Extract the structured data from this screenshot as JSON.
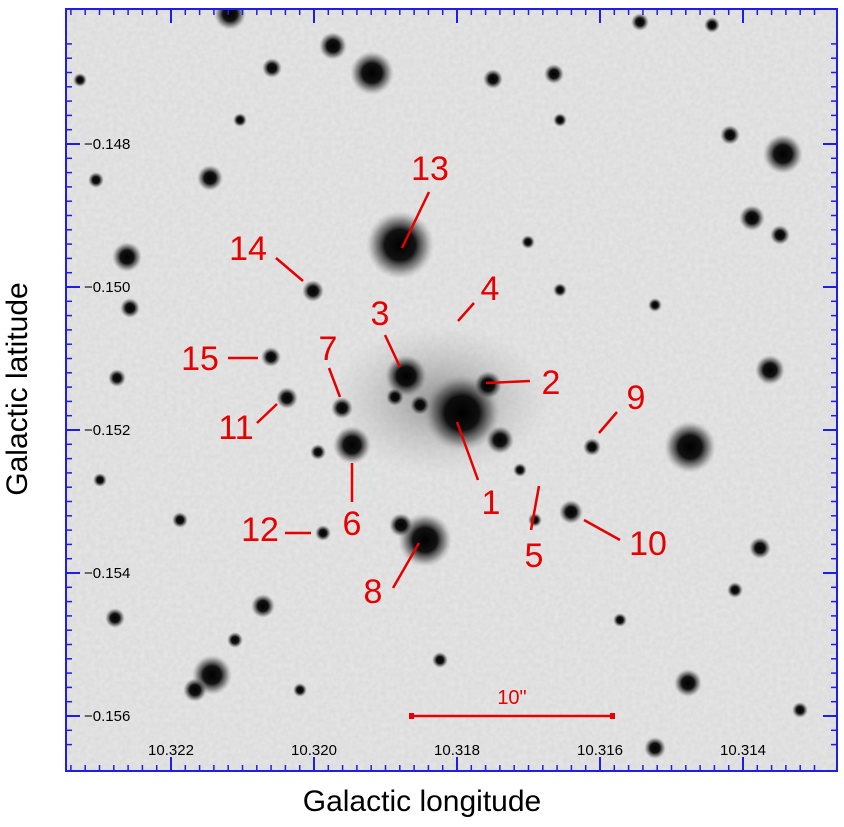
{
  "axes": {
    "xlabel": "Galactic  longitude",
    "ylabel": "Galactic  latitude",
    "xlim": [
      10.3238,
      10.3129
    ],
    "ylim": [
      -0.1566,
      -0.1467
    ],
    "x_ticks": [
      10.322,
      10.32,
      10.318,
      10.316,
      10.314
    ],
    "x_tick_labels": [
      "10.322",
      "10.320",
      "10.318",
      "10.316",
      "10.314"
    ],
    "y_ticks": [
      -0.148,
      -0.15,
      -0.152,
      -0.154,
      -0.156
    ],
    "y_tick_labels": [
      "−0.148",
      "−0.150",
      "−0.152",
      "−0.154",
      "−0.156"
    ],
    "frame_color": "#1e1ee6",
    "label_color": "#000000"
  },
  "scale_bar": {
    "label": "10\"",
    "length_arcsec": 10,
    "color": "#e60000"
  },
  "annotation_color": "#e60000",
  "sources": [
    {
      "id": "1",
      "label": "1",
      "l": 10.3179,
      "b": -0.1519
    },
    {
      "id": "2",
      "label": "2",
      "l": 10.3175,
      "b": -0.1514
    },
    {
      "id": "3",
      "label": "3",
      "l": 10.3186,
      "b": -0.1513
    },
    {
      "id": "4",
      "label": "4",
      "l": 10.318,
      "b": -0.1504
    },
    {
      "id": "5",
      "label": "5",
      "l": 10.3169,
      "b": -0.1527
    },
    {
      "id": "6",
      "label": "6",
      "l": 10.3195,
      "b": -0.1522
    },
    {
      "id": "7",
      "label": "7",
      "l": 10.3195,
      "b": -0.1517
    },
    {
      "id": "8",
      "label": "8",
      "l": 10.3184,
      "b": -0.1536
    },
    {
      "id": "9",
      "label": "9",
      "l": 10.3159,
      "b": -0.1522
    },
    {
      "id": "10",
      "label": "10",
      "l": 10.3163,
      "b": -0.1531
    },
    {
      "id": "11",
      "label": "11",
      "l": 10.3203,
      "b": -0.1516
    },
    {
      "id": "12",
      "label": "12",
      "l": 10.3199,
      "b": -0.1534
    },
    {
      "id": "13",
      "label": "13",
      "l": 10.3187,
      "b": -0.1494
    },
    {
      "id": "14",
      "label": "14",
      "l": 10.32,
      "b": -0.15
    },
    {
      "id": "15",
      "label": "15",
      "l": 10.3204,
      "b": -0.1511
    }
  ]
}
